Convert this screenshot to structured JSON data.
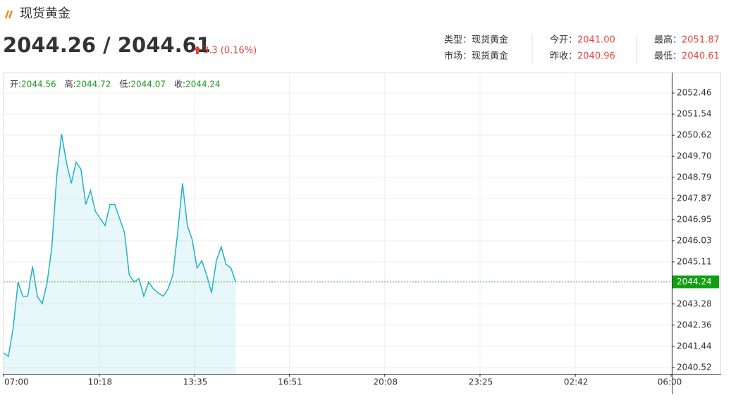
{
  "header": {
    "title": "现货黄金",
    "price": "2044.26 / 2044.61",
    "change": "3.3 (0.16%)",
    "info": [
      {
        "label": "类型：",
        "value": "现货黄金"
      },
      {
        "label": "市场：",
        "value": "现货黄金"
      },
      {
        "label": "今开：",
        "value": "2041.00"
      },
      {
        "label": "昨收：",
        "value": "2040.96"
      },
      {
        "label": "最高：",
        "value": "2051.87"
      },
      {
        "label": "最低：",
        "value": "2040.61"
      }
    ]
  },
  "chart_data": {
    "type": "line",
    "ohlc": [
      {
        "label": "开:",
        "value": 2044.56
      },
      {
        "label": "高:",
        "value": 2044.72
      },
      {
        "label": "低:",
        "value": 2044.07
      },
      {
        "label": "收:",
        "value": 2044.24
      }
    ],
    "x": [
      "07:00",
      "07:10",
      "07:20",
      "07:30",
      "07:40",
      "07:50",
      "08:00",
      "08:10",
      "08:20",
      "08:30",
      "08:40",
      "08:50",
      "09:00",
      "09:10",
      "09:20",
      "09:30",
      "09:40",
      "09:50",
      "10:00",
      "10:10",
      "10:20",
      "10:30",
      "10:40",
      "10:50",
      "11:00",
      "11:10",
      "11:20",
      "11:30",
      "11:40",
      "11:50",
      "12:00",
      "12:10",
      "12:20",
      "12:30",
      "12:40",
      "12:50",
      "13:00",
      "13:10",
      "13:20",
      "13:30",
      "13:40",
      "13:50",
      "14:00",
      "14:10",
      "14:20",
      "14:30",
      "14:40",
      "14:50",
      "15:00"
    ],
    "series": [
      {
        "color": "#1fb3c8",
        "values": [
          2041.15,
          2041.0,
          2042.24,
          2044.23,
          2043.62,
          2043.62,
          2044.91,
          2043.6,
          2043.3,
          2044.2,
          2045.77,
          2048.84,
          2050.68,
          2049.45,
          2048.53,
          2049.45,
          2049.15,
          2047.61,
          2048.22,
          2047.3,
          2047.0,
          2046.69,
          2047.61,
          2047.61,
          2047.0,
          2046.38,
          2044.54,
          2044.23,
          2044.39,
          2043.62,
          2044.23,
          2043.93,
          2043.77,
          2043.62,
          2043.93,
          2044.54,
          2046.38,
          2048.53,
          2046.69,
          2046.08,
          2044.85,
          2045.16,
          2044.54,
          2043.77,
          2045.16,
          2045.77,
          2045.0,
          2044.85,
          2044.24
        ]
      }
    ],
    "last": 2044.24,
    "xlim": [
      "07:00",
      "06:00"
    ],
    "xticks": [
      "07:00",
      "10:18",
      "13:35",
      "16:51",
      "20:08",
      "23:25",
      "02:42",
      "06:00"
    ],
    "ylim": [
      2040.24,
      2053.35
    ],
    "yticks": [
      2040.52,
      2041.44,
      2042.36,
      2043.28,
      2045.11,
      2046.03,
      2046.95,
      2047.87,
      2048.79,
      {
        "value": 2049.7,
        "label": "2049.70"
      },
      2050.62,
      2051.54,
      2052.46
    ],
    "grid": true
  }
}
